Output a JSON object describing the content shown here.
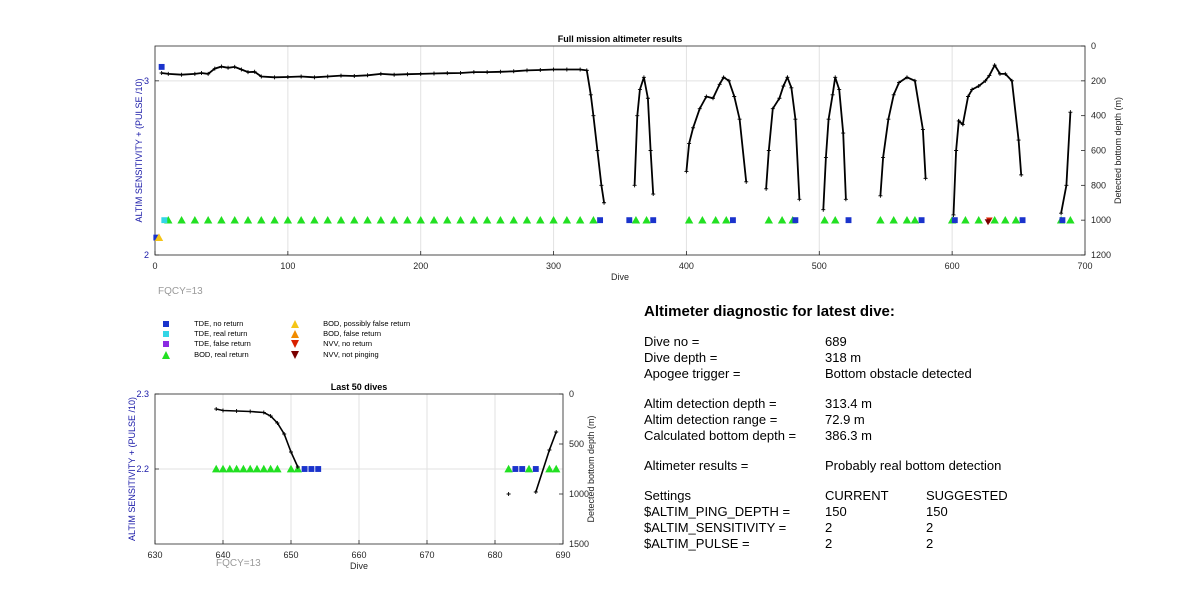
{
  "colors": {
    "tde_no_return": "#1a33cc",
    "tde_real_return": "#33d6e6",
    "tde_false_return": "#8a2be2",
    "bod_real_return": "#22e022",
    "bod_possibly_false": "#f5c518",
    "bod_false": "#f08c00",
    "nvv_no_return": "#d92000",
    "nvv_not_pinging": "#7a0000",
    "axis_left": "#1a1aa8",
    "fqcy": "#9a9a9a"
  },
  "fqcy_top": "FQCY=13",
  "fqcy_bottom": "FQCY=13",
  "legend": [
    {
      "label": "TDE, no return",
      "marker": "square",
      "color_key": "tde_no_return"
    },
    {
      "label": "TDE, real return",
      "marker": "square",
      "color_key": "tde_real_return"
    },
    {
      "label": "TDE, false return",
      "marker": "square",
      "color_key": "tde_false_return"
    },
    {
      "label": "BOD, real return",
      "marker": "triangle-up",
      "color_key": "bod_real_return"
    },
    {
      "label": "BOD, possibly false return",
      "marker": "triangle-up",
      "color_key": "bod_possibly_false"
    },
    {
      "label": "BOD, false return",
      "marker": "triangle-up",
      "color_key": "bod_false"
    },
    {
      "label": "NVV, no return",
      "marker": "triangle-down",
      "color_key": "nvv_no_return"
    },
    {
      "label": "NVV, not pinging",
      "marker": "triangle-down",
      "color_key": "nvv_not_pinging"
    }
  ],
  "diagnostic": {
    "title": "Altimeter diagnostic for latest dive:",
    "dive_no_label": "Dive no =",
    "dive_no": "689",
    "dive_depth_label": "Dive depth =",
    "dive_depth": "318 m",
    "apogee_label": "Apogee trigger =",
    "apogee": "Bottom obstacle detected",
    "det_depth_label": "Altim detection depth =",
    "det_depth": "313.4 m",
    "det_range_label": "Altim detection range =",
    "det_range": "72.9 m",
    "calc_depth_label": "Calculated bottom depth =",
    "calc_depth": "386.3 m",
    "results_label": "Altimeter results =",
    "results": "Probably real bottom detection",
    "settings_label": "Settings",
    "current_label": "CURRENT",
    "suggested_label": "SUGGESTED",
    "settings": [
      {
        "name": "$ALTIM_PING_DEPTH =",
        "current": "150",
        "suggested": "150"
      },
      {
        "name": "$ALTIM_SENSITIVITY =",
        "current": "2",
        "suggested": "2"
      },
      {
        "name": "$ALTIM_PULSE =",
        "current": "2",
        "suggested": "2"
      }
    ]
  },
  "chart_data": [
    {
      "type": "line",
      "title": "Full mission altimeter results",
      "xlabel": "Dive",
      "ylabel": "ALTIM SENSITIVITY + (PULSE /10)",
      "y2label": "Detected bottom depth (m)",
      "xlim": [
        0,
        700
      ],
      "ylim": [
        2,
        3.2
      ],
      "y2lim": [
        0,
        1200
      ],
      "y2_reversed": true,
      "xticks": [
        0,
        100,
        200,
        300,
        400,
        500,
        600,
        700
      ],
      "yticks": [
        2,
        3
      ],
      "y2ticks": [
        0,
        200,
        400,
        600,
        800,
        1000,
        1200
      ],
      "grid": true,
      "depth_series": [
        [
          [
            5,
            155
          ],
          [
            10,
            160
          ],
          [
            20,
            165
          ],
          [
            30,
            160
          ],
          [
            35,
            155
          ],
          [
            40,
            160
          ],
          [
            45,
            130
          ],
          [
            50,
            118
          ],
          [
            55,
            125
          ],
          [
            60,
            120
          ],
          [
            65,
            135
          ],
          [
            70,
            150
          ],
          [
            75,
            148
          ],
          [
            80,
            175
          ],
          [
            90,
            180
          ],
          [
            100,
            178
          ],
          [
            110,
            175
          ],
          [
            120,
            180
          ],
          [
            130,
            175
          ],
          [
            140,
            170
          ],
          [
            150,
            172
          ],
          [
            160,
            168
          ],
          [
            170,
            160
          ],
          [
            180,
            165
          ],
          [
            190,
            162
          ],
          [
            200,
            160
          ],
          [
            210,
            158
          ],
          [
            220,
            156
          ],
          [
            230,
            155
          ],
          [
            240,
            150
          ],
          [
            250,
            150
          ],
          [
            260,
            148
          ],
          [
            270,
            145
          ],
          [
            280,
            140
          ],
          [
            290,
            138
          ],
          [
            300,
            135
          ],
          [
            310,
            135
          ],
          [
            320,
            135
          ],
          [
            325,
            140
          ],
          [
            328,
            280
          ],
          [
            330,
            400
          ],
          [
            333,
            600
          ],
          [
            336,
            800
          ],
          [
            338,
            900
          ]
        ],
        [
          [
            361,
            800
          ],
          [
            363,
            400
          ],
          [
            365,
            250
          ],
          [
            368,
            180
          ],
          [
            371,
            300
          ],
          [
            373,
            600
          ],
          [
            375,
            850
          ]
        ],
        [
          [
            400,
            720
          ],
          [
            402,
            560
          ],
          [
            405,
            470
          ],
          [
            410,
            360
          ],
          [
            415,
            290
          ],
          [
            420,
            300
          ],
          [
            425,
            220
          ],
          [
            428,
            180
          ],
          [
            432,
            200
          ],
          [
            436,
            290
          ],
          [
            440,
            420
          ],
          [
            445,
            780
          ]
        ],
        [
          [
            460,
            820
          ],
          [
            462,
            600
          ],
          [
            465,
            360
          ],
          [
            470,
            300
          ],
          [
            473,
            230
          ],
          [
            476,
            180
          ],
          [
            479,
            240
          ],
          [
            482,
            420
          ],
          [
            485,
            880
          ]
        ],
        [
          [
            503,
            940
          ],
          [
            505,
            640
          ],
          [
            507,
            420
          ],
          [
            510,
            280
          ],
          [
            512,
            180
          ],
          [
            515,
            250
          ],
          [
            518,
            500
          ],
          [
            520,
            880
          ]
        ],
        [
          [
            546,
            860
          ],
          [
            548,
            640
          ],
          [
            552,
            420
          ],
          [
            556,
            280
          ],
          [
            560,
            210
          ],
          [
            566,
            180
          ],
          [
            572,
            200
          ],
          [
            578,
            480
          ],
          [
            580,
            760
          ]
        ],
        [
          [
            601,
            970
          ],
          [
            603,
            600
          ],
          [
            605,
            430
          ],
          [
            608,
            450
          ],
          [
            612,
            290
          ],
          [
            615,
            250
          ],
          [
            620,
            230
          ],
          [
            625,
            200
          ],
          [
            628,
            170
          ],
          [
            632,
            110
          ],
          [
            636,
            160
          ],
          [
            640,
            160
          ],
          [
            645,
            200
          ],
          [
            650,
            540
          ],
          [
            652,
            740
          ]
        ],
        [
          [
            682,
            960
          ],
          [
            686,
            800
          ],
          [
            689,
            380
          ]
        ]
      ],
      "tde_no_return_points": [
        [
          5,
          3.08
        ],
        [
          335,
          2.2
        ],
        [
          357,
          2.2
        ],
        [
          375,
          2.2
        ],
        [
          435,
          2.2
        ],
        [
          482,
          2.2
        ],
        [
          522,
          2.2
        ],
        [
          577,
          2.2
        ],
        [
          602,
          2.2
        ],
        [
          653,
          2.2
        ],
        [
          683,
          2.2
        ],
        [
          1,
          2.1
        ]
      ],
      "tde_real_return_points": [
        [
          7,
          2.2
        ]
      ],
      "bod_real_return_points": [
        [
          10,
          2.2
        ],
        [
          20,
          2.2
        ],
        [
          30,
          2.2
        ],
        [
          40,
          2.2
        ],
        [
          50,
          2.2
        ],
        [
          60,
          2.2
        ],
        [
          70,
          2.2
        ],
        [
          80,
          2.2
        ],
        [
          90,
          2.2
        ],
        [
          100,
          2.2
        ],
        [
          110,
          2.2
        ],
        [
          120,
          2.2
        ],
        [
          130,
          2.2
        ],
        [
          140,
          2.2
        ],
        [
          150,
          2.2
        ],
        [
          160,
          2.2
        ],
        [
          170,
          2.2
        ],
        [
          180,
          2.2
        ],
        [
          190,
          2.2
        ],
        [
          200,
          2.2
        ],
        [
          210,
          2.2
        ],
        [
          220,
          2.2
        ],
        [
          230,
          2.2
        ],
        [
          240,
          2.2
        ],
        [
          250,
          2.2
        ],
        [
          260,
          2.2
        ],
        [
          270,
          2.2
        ],
        [
          280,
          2.2
        ],
        [
          290,
          2.2
        ],
        [
          300,
          2.2
        ],
        [
          310,
          2.2
        ],
        [
          320,
          2.2
        ],
        [
          330,
          2.2
        ],
        [
          362,
          2.2
        ],
        [
          370,
          2.2
        ],
        [
          402,
          2.2
        ],
        [
          412,
          2.2
        ],
        [
          422,
          2.2
        ],
        [
          430,
          2.2
        ],
        [
          462,
          2.2
        ],
        [
          472,
          2.2
        ],
        [
          480,
          2.2
        ],
        [
          504,
          2.2
        ],
        [
          512,
          2.2
        ],
        [
          546,
          2.2
        ],
        [
          556,
          2.2
        ],
        [
          566,
          2.2
        ],
        [
          572,
          2.2
        ],
        [
          600,
          2.2
        ],
        [
          610,
          2.2
        ],
        [
          620,
          2.2
        ],
        [
          632,
          2.2
        ],
        [
          640,
          2.2
        ],
        [
          648,
          2.2
        ],
        [
          682,
          2.2
        ],
        [
          689,
          2.2
        ]
      ],
      "bod_possibly_false_points": [
        [
          3,
          2.1
        ]
      ],
      "nvv_no_return_points": [
        [
          628,
          2.2
        ]
      ],
      "nvv_not_pinging_points": [
        [
          627,
          2.19
        ]
      ]
    },
    {
      "type": "line",
      "title": "Last 50 dives",
      "xlabel": "Dive",
      "ylabel": "ALTIM SENSITIVITY + (PULSE /10)",
      "y2label": "Detected bottom depth (m)",
      "xlim": [
        630,
        690
      ],
      "ylim": [
        2.1,
        2.3
      ],
      "y2lim": [
        0,
        1500
      ],
      "y2_reversed": true,
      "xticks": [
        630,
        640,
        650,
        660,
        670,
        680,
        690
      ],
      "yticks": [
        2.2,
        2.3
      ],
      "y2ticks": [
        0,
        500,
        1000,
        1500
      ],
      "grid": true,
      "depth_series": [
        [
          [
            639,
            150
          ],
          [
            640,
            165
          ],
          [
            642,
            170
          ],
          [
            644,
            175
          ],
          [
            646,
            185
          ],
          [
            647,
            220
          ],
          [
            648,
            290
          ],
          [
            649,
            400
          ],
          [
            650,
            580
          ],
          [
            651,
            730
          ]
        ],
        [
          [
            682,
            1000
          ]
        ],
        [
          [
            686,
            980
          ],
          [
            688,
            560
          ],
          [
            689,
            380
          ]
        ]
      ],
      "bod_real_return_points": [
        [
          639,
          2.2
        ],
        [
          640,
          2.2
        ],
        [
          641,
          2.2
        ],
        [
          642,
          2.2
        ],
        [
          643,
          2.2
        ],
        [
          644,
          2.2
        ],
        [
          645,
          2.2
        ],
        [
          646,
          2.2
        ],
        [
          647,
          2.2
        ],
        [
          648,
          2.2
        ],
        [
          650,
          2.2
        ],
        [
          651,
          2.2
        ],
        [
          682,
          2.2
        ],
        [
          685,
          2.2
        ],
        [
          688,
          2.2
        ],
        [
          689,
          2.2
        ]
      ],
      "tde_no_return_points": [
        [
          652,
          2.2
        ],
        [
          653,
          2.2
        ],
        [
          654,
          2.2
        ],
        [
          683,
          2.2
        ],
        [
          684,
          2.2
        ],
        [
          686,
          2.2
        ]
      ]
    }
  ]
}
